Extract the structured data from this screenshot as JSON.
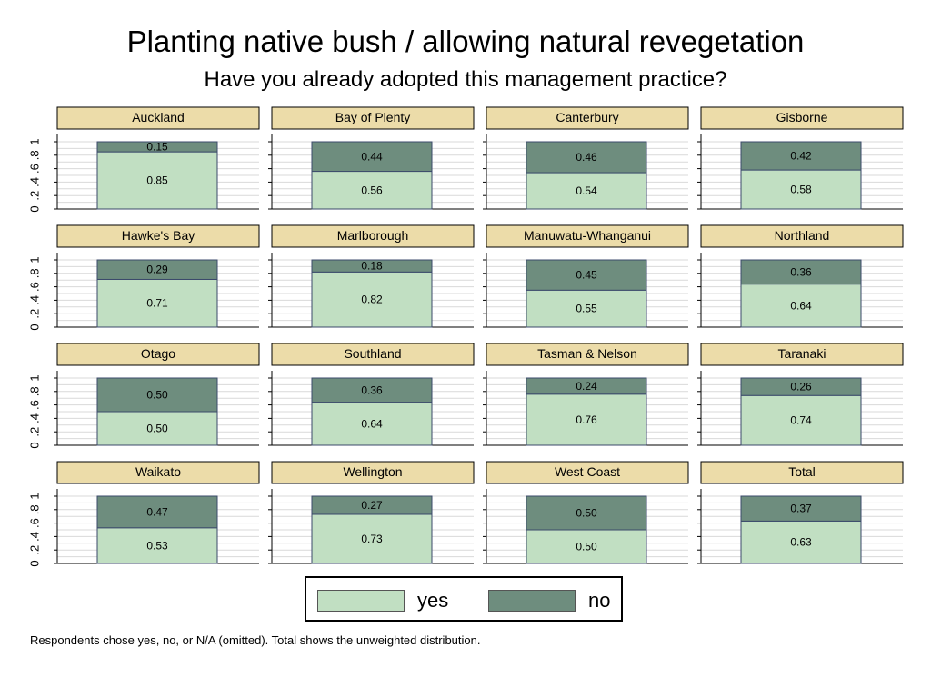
{
  "chart_data": {
    "type": "bar",
    "stacked": true,
    "title": "Planting native bush / allowing natural revegetation",
    "subtitle": "Have you already adopted this management practice?",
    "ylim": [
      0,
      1
    ],
    "y_ticks": [
      "0",
      ".2",
      ".4",
      ".6",
      ".8",
      "1"
    ],
    "grid": true,
    "legend_position": "bottom",
    "series_names": [
      "yes",
      "no"
    ],
    "series_colors": {
      "yes": "#c1dfc2",
      "no": "#6e8d7e"
    },
    "panel_header_color": "#ecdca9",
    "panels": [
      {
        "name": "Auckland",
        "yes": 0.85,
        "no": 0.15,
        "yes_label": "0.85",
        "no_label": "0.15"
      },
      {
        "name": "Bay of Plenty",
        "yes": 0.56,
        "no": 0.44,
        "yes_label": "0.56",
        "no_label": "0.44"
      },
      {
        "name": "Canterbury",
        "yes": 0.54,
        "no": 0.46,
        "yes_label": "0.54",
        "no_label": "0.46"
      },
      {
        "name": "Gisborne",
        "yes": 0.58,
        "no": 0.42,
        "yes_label": "0.58",
        "no_label": "0.42"
      },
      {
        "name": "Hawke's Bay",
        "yes": 0.71,
        "no": 0.29,
        "yes_label": "0.71",
        "no_label": "0.29"
      },
      {
        "name": "Marlborough",
        "yes": 0.82,
        "no": 0.18,
        "yes_label": "0.82",
        "no_label": "0.18"
      },
      {
        "name": "Manuwatu-Whanganui",
        "yes": 0.55,
        "no": 0.45,
        "yes_label": "0.55",
        "no_label": "0.45"
      },
      {
        "name": "Northland",
        "yes": 0.64,
        "no": 0.36,
        "yes_label": "0.64",
        "no_label": "0.36"
      },
      {
        "name": "Otago",
        "yes": 0.5,
        "no": 0.5,
        "yes_label": "0.50",
        "no_label": "0.50"
      },
      {
        "name": "Southland",
        "yes": 0.64,
        "no": 0.36,
        "yes_label": "0.64",
        "no_label": "0.36"
      },
      {
        "name": "Tasman & Nelson",
        "yes": 0.76,
        "no": 0.24,
        "yes_label": "0.76",
        "no_label": "0.24"
      },
      {
        "name": "Taranaki",
        "yes": 0.74,
        "no": 0.26,
        "yes_label": "0.74",
        "no_label": "0.26"
      },
      {
        "name": "Waikato",
        "yes": 0.53,
        "no": 0.47,
        "yes_label": "0.53",
        "no_label": "0.47"
      },
      {
        "name": "Wellington",
        "yes": 0.73,
        "no": 0.27,
        "yes_label": "0.73",
        "no_label": "0.27"
      },
      {
        "name": "West Coast",
        "yes": 0.5,
        "no": 0.5,
        "yes_label": "0.50",
        "no_label": "0.50"
      },
      {
        "name": "Total",
        "yes": 0.63,
        "no": 0.37,
        "yes_label": "0.63",
        "no_label": "0.37"
      }
    ]
  },
  "legend": {
    "yes_label": "yes",
    "no_label": "no"
  },
  "footnote": "Respondents chose yes, no, or N/A (omitted). Total shows the unweighted distribution."
}
